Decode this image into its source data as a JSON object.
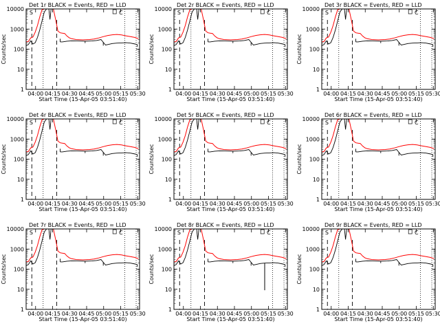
{
  "chart_data": [
    {
      "type": "line",
      "title": "Det 1r BLACK = Events, RED = LLD",
      "ylabel": "Counts/sec",
      "xlabel": "Start Time (15-Apr-05 03:51:40)",
      "yscale": "log",
      "ylim": [
        1,
        10000
      ],
      "xlim": [
        "03:51:40",
        "05:31:40"
      ],
      "x_tick_labels": [
        "04:00",
        "04:15",
        "04:30",
        "04:45",
        "05:00",
        "05:15",
        "05:30"
      ],
      "y_tick_labels": [
        "1",
        "10",
        "100",
        "1000",
        "10000"
      ],
      "annotations": [
        "S",
        "C"
      ],
      "series": [
        {
          "name": "BLACK = Events",
          "color": "#000000"
        },
        {
          "name": "RED = LLD",
          "color": "#ff0000"
        }
      ]
    },
    {
      "type": "line",
      "title": "Det 2r BLACK = Events, RED = LLD",
      "ylabel": "Counts/sec",
      "xlabel": "Start Time (15-Apr-05 03:51:40)",
      "yscale": "log",
      "ylim": [
        1,
        10000
      ],
      "xlim": [
        "03:51:40",
        "05:31:40"
      ],
      "x_tick_labels": [
        "04:00",
        "04:15",
        "04:30",
        "04:45",
        "05:00",
        "05:15",
        "05:30"
      ],
      "y_tick_labels": [
        "1",
        "10",
        "100",
        "1000",
        "10000"
      ],
      "annotations": [
        "S",
        "C"
      ],
      "series": [
        {
          "name": "BLACK = Events",
          "color": "#000000"
        },
        {
          "name": "RED = LLD",
          "color": "#ff0000"
        }
      ]
    },
    {
      "type": "line",
      "title": "Det 3r BLACK = Events, RED = LLD",
      "ylabel": "Counts/sec",
      "xlabel": "Start Time (15-Apr-05 03:51:40)",
      "yscale": "log",
      "ylim": [
        1,
        10000
      ],
      "xlim": [
        "03:51:40",
        "05:31:40"
      ],
      "x_tick_labels": [
        "04:00",
        "04:15",
        "04:30",
        "04:45",
        "05:00",
        "05:15",
        "05:30"
      ],
      "y_tick_labels": [
        "1",
        "10",
        "100",
        "1000",
        "10000"
      ],
      "annotations": [
        "S",
        "C"
      ],
      "series": [
        {
          "name": "BLACK = Events",
          "color": "#000000"
        },
        {
          "name": "RED = LLD",
          "color": "#ff0000"
        }
      ]
    },
    {
      "type": "line",
      "title": "Det 4r BLACK = Events, RED = LLD",
      "ylabel": "Counts/sec",
      "xlabel": "Start Time (15-Apr-05 03:51:40)",
      "yscale": "log",
      "ylim": [
        1,
        10000
      ],
      "xlim": [
        "03:51:40",
        "05:31:40"
      ],
      "x_tick_labels": [
        "04:00",
        "04:15",
        "04:30",
        "04:45",
        "05:00",
        "05:15",
        "05:30"
      ],
      "y_tick_labels": [
        "1",
        "10",
        "100",
        "1000",
        "10000"
      ],
      "annotations": [
        "S",
        "C"
      ],
      "series": [
        {
          "name": "BLACK = Events",
          "color": "#000000"
        },
        {
          "name": "RED = LLD",
          "color": "#ff0000"
        }
      ]
    },
    {
      "type": "line",
      "title": "Det 5r BLACK = Events, RED = LLD",
      "ylabel": "Counts/sec",
      "xlabel": "Start Time (15-Apr-05 03:51:40)",
      "yscale": "log",
      "ylim": [
        1,
        10000
      ],
      "xlim": [
        "03:51:40",
        "05:31:40"
      ],
      "x_tick_labels": [
        "04:00",
        "04:15",
        "04:30",
        "04:45",
        "05:00",
        "05:15",
        "05:30"
      ],
      "y_tick_labels": [
        "1",
        "10",
        "100",
        "1000",
        "10000"
      ],
      "annotations": [
        "S",
        "C"
      ],
      "series": [
        {
          "name": "BLACK = Events",
          "color": "#000000"
        },
        {
          "name": "RED = LLD",
          "color": "#ff0000"
        }
      ]
    },
    {
      "type": "line",
      "title": "Det 6r BLACK = Events, RED = LLD",
      "ylabel": "Counts/sec",
      "xlabel": "Start Time (15-Apr-05 03:51:40)",
      "yscale": "log",
      "ylim": [
        1,
        10000
      ],
      "xlim": [
        "03:51:40",
        "05:31:40"
      ],
      "x_tick_labels": [
        "04:00",
        "04:15",
        "04:30",
        "04:45",
        "05:00",
        "05:15",
        "05:30"
      ],
      "y_tick_labels": [
        "1",
        "10",
        "100",
        "1000",
        "10000"
      ],
      "annotations": [
        "S",
        "C"
      ],
      "series": [
        {
          "name": "BLACK = Events",
          "color": "#000000"
        },
        {
          "name": "RED = LLD",
          "color": "#ff0000"
        }
      ]
    },
    {
      "type": "line",
      "title": "Det 7r BLACK = Events, RED = LLD",
      "ylabel": "Counts/sec",
      "xlabel": "Start Time (15-Apr-05 03:51:40)",
      "yscale": "log",
      "ylim": [
        1,
        10000
      ],
      "xlim": [
        "03:51:40",
        "05:31:40"
      ],
      "x_tick_labels": [
        "04:00",
        "04:15",
        "04:30",
        "04:45",
        "05:00",
        "05:15",
        "05:30"
      ],
      "y_tick_labels": [
        "1",
        "10",
        "100",
        "1000",
        "10000"
      ],
      "annotations": [
        "S",
        "C"
      ],
      "series": [
        {
          "name": "BLACK = Events",
          "color": "#000000"
        },
        {
          "name": "RED = LLD",
          "color": "#ff0000"
        }
      ]
    },
    {
      "type": "line",
      "title": "Det 8r BLACK = Events, RED = LLD",
      "ylabel": "Counts/sec",
      "xlabel": "Start Time (15-Apr-05 03:51:40)",
      "yscale": "log",
      "ylim": [
        1,
        10000
      ],
      "xlim": [
        "03:51:40",
        "05:31:40"
      ],
      "x_tick_labels": [
        "04:00",
        "04:15",
        "04:30",
        "04:45",
        "05:00",
        "05:15",
        "05:30"
      ],
      "y_tick_labels": [
        "1",
        "10",
        "100",
        "1000",
        "10000"
      ],
      "annotations": [
        "S",
        "C"
      ],
      "series": [
        {
          "name": "BLACK = Events",
          "color": "#000000"
        },
        {
          "name": "RED = LLD",
          "color": "#ff0000"
        }
      ]
    },
    {
      "type": "line",
      "title": "Det 9r BLACK = Events, RED = LLD",
      "ylabel": "Counts/sec",
      "xlabel": "Start Time (15-Apr-05 03:51:40)",
      "yscale": "log",
      "ylim": [
        1,
        10000
      ],
      "xlim": [
        "03:51:40",
        "05:31:40"
      ],
      "x_tick_labels": [
        "04:00",
        "04:15",
        "04:30",
        "04:45",
        "05:00",
        "05:15",
        "05:30"
      ],
      "y_tick_labels": [
        "1",
        "10",
        "100",
        "1000",
        "10000"
      ],
      "annotations": [
        "S",
        "C"
      ],
      "series": [
        {
          "name": "BLACK = Events",
          "color": "#000000"
        },
        {
          "name": "RED = LLD",
          "color": "#ff0000"
        }
      ]
    }
  ]
}
